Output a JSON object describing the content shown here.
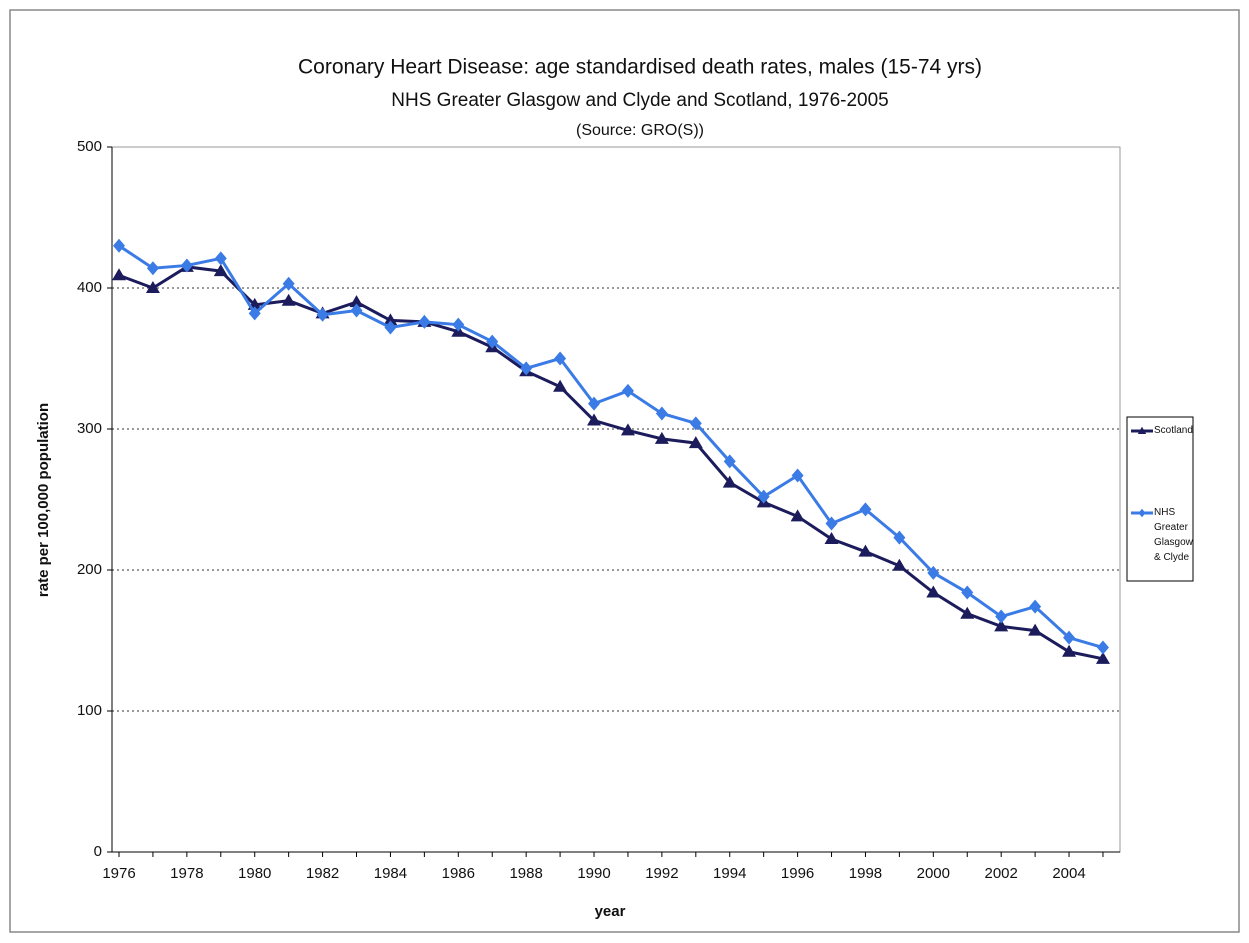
{
  "chart_data": {
    "type": "line",
    "title": "Coronary Heart Disease: age standardised death rates, males (15-74 yrs)",
    "subtitle": "NHS Greater Glasgow and Clyde and Scotland, 1976-2005",
    "source": "(Source: GRO(S))",
    "x_label": "year",
    "y_label": "rate per 100,000 population",
    "categories": [
      "1976",
      null,
      "1978",
      null,
      "1980",
      null,
      "1982",
      null,
      "1984",
      null,
      "1986",
      null,
      "1988",
      null,
      "1990",
      null,
      "1992",
      null,
      "1994",
      null,
      "1996",
      null,
      "1998",
      null,
      "2000",
      null,
      "2002",
      null,
      "2004",
      null
    ],
    "series": [
      {
        "name": "Scotland",
        "color": "#1c1c5c",
        "marker": "triangle",
        "values": [
          409,
          400,
          415,
          412,
          388,
          391,
          382,
          390,
          377,
          376,
          369,
          358,
          341,
          330,
          306,
          299,
          293,
          290,
          262,
          248,
          238,
          222,
          213,
          203,
          184,
          169,
          160,
          157,
          142,
          137
        ]
      },
      {
        "name": "NHS Greater Glasgow & Clyde",
        "color": "#3b7be6",
        "marker": "diamond",
        "values": [
          430,
          414,
          416,
          421,
          382,
          403,
          381,
          384,
          372,
          376,
          374,
          362,
          343,
          350,
          318,
          327,
          311,
          304,
          277,
          252,
          267,
          233,
          243,
          223,
          198,
          184,
          167,
          174,
          152,
          145
        ]
      }
    ],
    "ylim": [
      0,
      500
    ],
    "yticks": [
      0,
      100,
      200,
      300,
      400,
      500
    ],
    "grid": true,
    "legend": "right"
  }
}
